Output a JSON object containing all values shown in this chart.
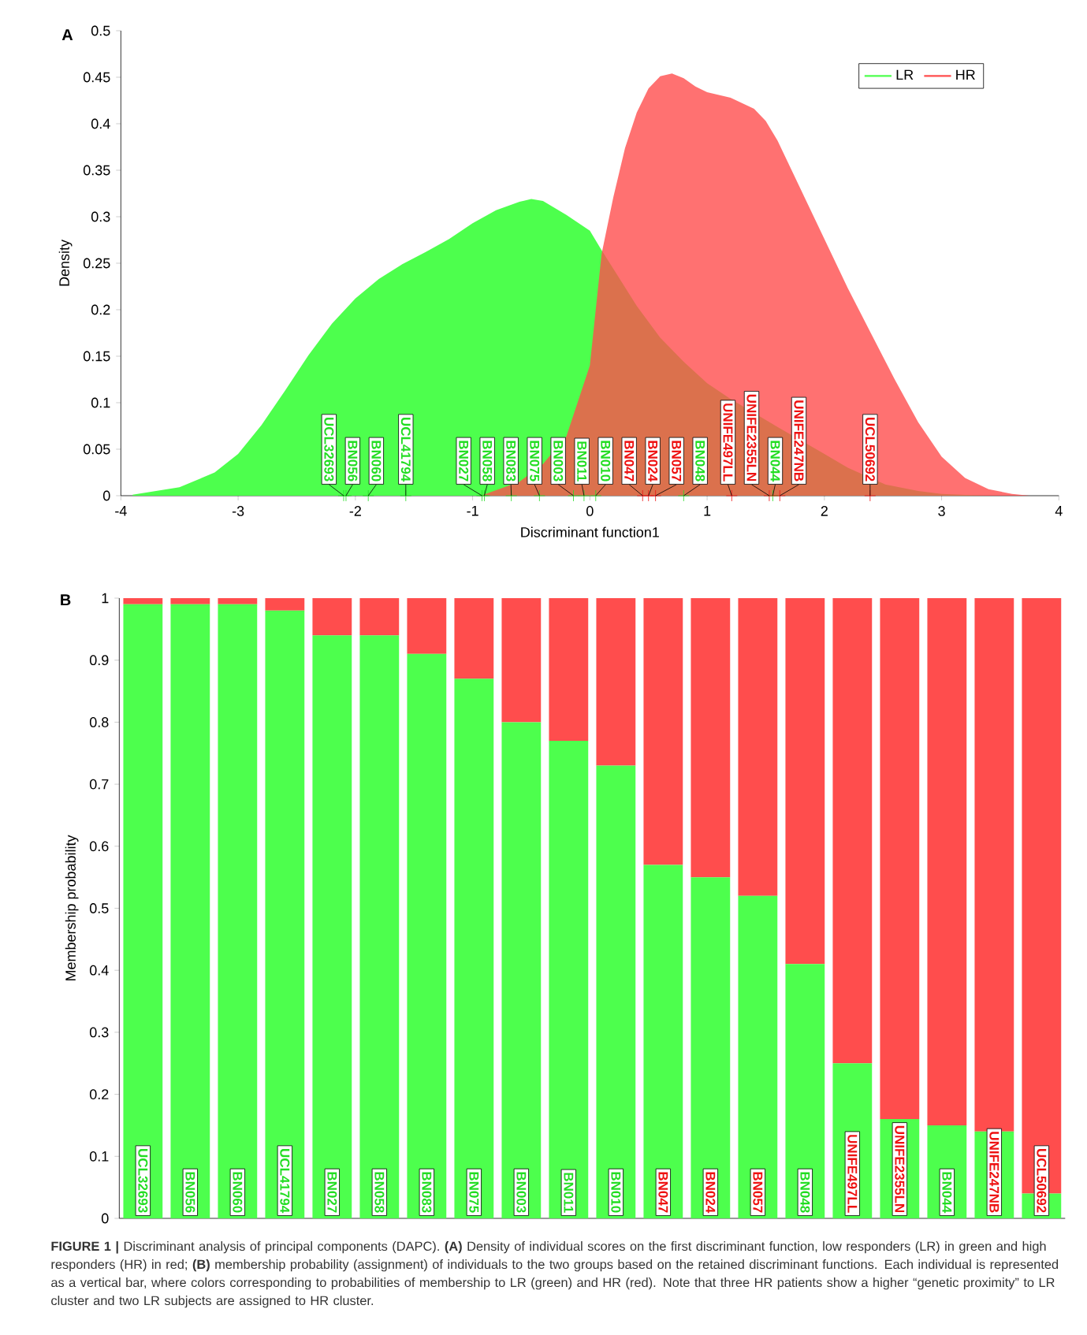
{
  "chart_data": [
    {
      "type": "area",
      "xlabel": "Discriminant function1",
      "ylabel": "Density",
      "xlim": [
        -4,
        4
      ],
      "xticks": [
        -4,
        -3,
        -2,
        -1,
        0,
        1,
        2,
        3,
        4
      ],
      "ylim": [
        0,
        0.5
      ],
      "yticks": [
        0,
        0.05,
        0.1,
        0.15,
        0.2,
        0.25,
        0.3,
        0.35,
        0.4,
        0.45,
        0.5
      ],
      "legend": "top right",
      "series": [
        {
          "name": "LR",
          "color": "#4dff4d",
          "x": [
            -3.9,
            -3.5,
            -3.2,
            -3.0,
            -2.8,
            -2.6,
            -2.4,
            -2.2,
            -2.0,
            -1.8,
            -1.6,
            -1.4,
            -1.2,
            -1.0,
            -0.8,
            -0.6,
            -0.5,
            -0.4,
            -0.2,
            0,
            0.1,
            0.2,
            0.4,
            0.6,
            0.8,
            1.0,
            1.2,
            1.6,
            2.0,
            2.2,
            2.52,
            2.8,
            3.0,
            3.37
          ],
          "values": [
            0.001,
            0.009,
            0.025,
            0.045,
            0.076,
            0.113,
            0.151,
            0.185,
            0.212,
            0.233,
            0.249,
            0.262,
            0.276,
            0.293,
            0.307,
            0.316,
            0.319,
            0.317,
            0.302,
            0.285,
            0.264,
            0.244,
            0.204,
            0.17,
            0.144,
            0.121,
            0.104,
            0.074,
            0.045,
            0.03,
            0.012,
            0.005,
            0.002,
            0
          ]
        },
        {
          "name": "HR",
          "color": "#ff4d4d",
          "x": [
            -0.93,
            -0.8,
            -0.6,
            -0.4,
            -0.2,
            0,
            0.1,
            0.2,
            0.3,
            0.4,
            0.5,
            0.6,
            0.7,
            0.8,
            0.9,
            1.0,
            1.2,
            1.4,
            1.5,
            1.6,
            1.8,
            2.0,
            2.2,
            2.4,
            2.6,
            2.8,
            3.0,
            3.2,
            3.4,
            3.6,
            3.75
          ],
          "values": [
            0,
            0.006,
            0.015,
            0.034,
            0.064,
            0.14,
            0.26,
            0.321,
            0.374,
            0.412,
            0.438,
            0.451,
            0.454,
            0.449,
            0.44,
            0.434,
            0.428,
            0.416,
            0.403,
            0.382,
            0.329,
            0.276,
            0.223,
            0.174,
            0.125,
            0.079,
            0.042,
            0.019,
            0.007,
            0.002,
            0
          ]
        },
        {
          "type": "scatter",
          "marker": "cross",
          "color": "#22dd22",
          "x": [
            -2.1,
            -2.08,
            -1.89,
            -1.57,
            -0.92,
            -0.9,
            -0.67,
            -0.43,
            -0.14,
            -0.05,
            0.05,
            0.8,
            1.56
          ],
          "values": [
            0,
            0,
            0,
            0,
            0,
            0,
            0,
            0,
            0,
            0,
            0,
            0,
            0
          ]
        },
        {
          "type": "scatter",
          "marker": "cross",
          "color": "#ee1111",
          "x": [
            0.45,
            0.5,
            0.56,
            1.21,
            1.53,
            1.62,
            2.39
          ],
          "values": [
            0,
            0,
            0,
            0,
            0,
            0,
            0
          ]
        }
      ],
      "annotations": [
        "A",
        {
          "text": "UCL32693",
          "x": -2.1,
          "y": 0
        },
        {
          "text": "BN056",
          "x": -2.08,
          "y": 0
        },
        {
          "text": "BN060",
          "x": -1.89,
          "y": 0
        },
        {
          "text": "UCL41794",
          "x": -1.57,
          "y": 0
        },
        {
          "text": "BN027",
          "x": -0.92,
          "y": 0
        },
        {
          "text": "BN058",
          "x": -0.9,
          "y": 0
        },
        {
          "text": "BN083",
          "x": -0.67,
          "y": 0
        },
        {
          "text": "BN075",
          "x": -0.43,
          "y": 0
        },
        {
          "text": "BN003",
          "x": -0.14,
          "y": 0
        },
        {
          "text": "BN011",
          "x": -0.05,
          "y": 0
        },
        {
          "text": "BN010",
          "x": 0.05,
          "y": 0
        },
        {
          "text": "BN047",
          "x": 0.45,
          "y": 0
        },
        {
          "text": "BN024",
          "x": 0.5,
          "y": 0
        },
        {
          "text": "BN057",
          "x": 0.56,
          "y": 0
        },
        {
          "text": "BN048",
          "x": 0.8,
          "y": 0
        },
        {
          "text": "UNIFE497LL",
          "x": 1.21,
          "y": 0
        },
        {
          "text": "UNIFE2355LN",
          "x": 1.53,
          "y": 0
        },
        {
          "text": "BN044",
          "x": 1.56,
          "y": 0
        },
        {
          "text": "UNIFE247NB",
          "x": 1.62,
          "y": 0
        },
        {
          "text": "UCL50692",
          "x": 2.39,
          "y": 0
        }
      ]
    },
    {
      "type": "bar",
      "stacked": true,
      "ylabel": "Membership probability",
      "categories": [
        "UCL32693",
        "BN056",
        "BN060",
        "UCL41794",
        "BN027",
        "BN058",
        "BN083",
        "BN075",
        "BN003",
        "BN011",
        "BN010",
        "BN047",
        "BN024",
        "BN057",
        "BN048",
        "UNIFE497LL",
        "UNIFE2355LN",
        "BN044",
        "UNIFE247NB",
        "UCL50692"
      ],
      "ylim": [
        0,
        1
      ],
      "yticks": [
        0,
        0.1,
        0.2,
        0.3,
        0.4,
        0.5,
        0.6,
        0.7,
        0.8,
        0.9,
        1
      ],
      "series": [
        {
          "color": "#4dff4d",
          "values": [
            0.99,
            0.99,
            0.99,
            0.98,
            0.94,
            0.94,
            0.91,
            0.87,
            0.8,
            0.77,
            0.73,
            0.57,
            0.55,
            0.52,
            0.41,
            0.25,
            0.16,
            0.15,
            0.14,
            0.04
          ]
        },
        {
          "color": "#ff4d4d",
          "values": [
            0.01,
            0.01,
            0.01,
            0.02,
            0.06,
            0.06,
            0.09,
            0.13,
            0.2,
            0.23,
            0.27,
            0.43,
            0.45,
            0.48,
            0.59,
            0.75,
            0.84,
            0.85,
            0.86,
            0.96
          ]
        }
      ],
      "annotations": [
        "B",
        "**FIGURE 1 |** Discriminant analysis of principal components (DAPC). **(A)** Density of individual scores on the first discriminant function, low responders (LR) in green and high responders (HR) in red; **(B)** membership probability (assignment) of individuals to the two groups based on the retained discriminant functions. Each individual is represented as a vertical bar, where colors corresponding to probabilities of membership to LR (green) and HR (red). Note that three HR patients show a higher “genetic proximity” to LR cluster and two LR subjects are assigned to HR cluster."
      ]
    }
  ]
}
